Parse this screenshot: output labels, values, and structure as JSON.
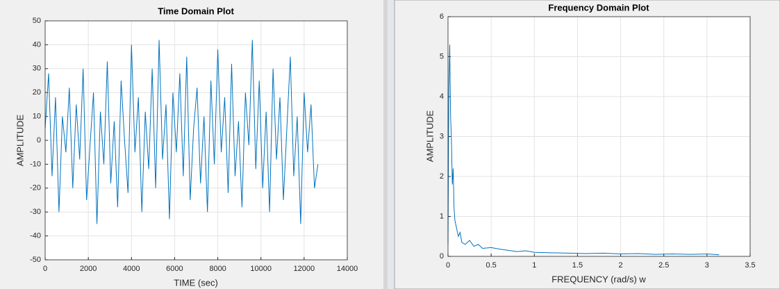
{
  "chart_data": [
    {
      "type": "line",
      "title": "Time Domain Plot",
      "xlabel": "TIME (sec)",
      "ylabel": "AMPLITUDE",
      "x": [
        0,
        160,
        320,
        480,
        640,
        800,
        960,
        1120,
        1280,
        1440,
        1600,
        1760,
        1920,
        2080,
        2240,
        2400,
        2560,
        2720,
        2880,
        3040,
        3200,
        3360,
        3520,
        3680,
        3840,
        4000,
        4160,
        4320,
        4480,
        4640,
        4800,
        4960,
        5120,
        5280,
        5440,
        5600,
        5760,
        5920,
        6080,
        6240,
        6400,
        6560,
        6720,
        6880,
        7040,
        7200,
        7360,
        7520,
        7680,
        7840,
        8000,
        8160,
        8320,
        8480,
        8640,
        8800,
        8960,
        9120,
        9280,
        9440,
        9600,
        9760,
        9920,
        10080,
        10240,
        10400,
        10560,
        10720,
        10880,
        11040,
        11200,
        11360,
        11520,
        11680,
        11840,
        12000,
        12160,
        12320,
        12480,
        12640
      ],
      "values": [
        5,
        28,
        -15,
        18,
        -30,
        10,
        -5,
        22,
        -20,
        15,
        -8,
        30,
        -25,
        -2,
        20,
        -35,
        12,
        -10,
        33,
        -18,
        8,
        -28,
        25,
        0,
        -22,
        40,
        -5,
        18,
        -30,
        12,
        -12,
        30,
        -20,
        42,
        -8,
        15,
        -33,
        20,
        -5,
        28,
        -15,
        35,
        -25,
        5,
        22,
        -18,
        10,
        -30,
        25,
        -10,
        38,
        -5,
        18,
        -22,
        32,
        -15,
        8,
        -28,
        20,
        -2,
        42,
        -12,
        25,
        -20,
        12,
        -30,
        30,
        -8,
        18,
        -25,
        5,
        35,
        -15,
        10,
        -35,
        20,
        -5,
        15,
        -20,
        -10
      ],
      "color": "#0072bd",
      "grid": true,
      "xlim": [
        0,
        14000
      ],
      "xticks": [
        0,
        2000,
        4000,
        6000,
        8000,
        10000,
        12000,
        14000
      ],
      "ylim": [
        -50,
        50
      ],
      "yticks": [
        -50,
        -40,
        -30,
        -20,
        -10,
        0,
        10,
        20,
        30,
        40,
        50
      ]
    },
    {
      "type": "line",
      "title": "Frequency Domain Plot",
      "xlabel": "FREQUENCY (rad/s) w",
      "ylabel": "AMPLITUDE",
      "x": [
        0,
        0.01,
        0.02,
        0.03,
        0.04,
        0.05,
        0.06,
        0.07,
        0.08,
        0.1,
        0.12,
        0.14,
        0.16,
        0.2,
        0.25,
        0.3,
        0.35,
        0.4,
        0.5,
        0.6,
        0.7,
        0.8,
        0.9,
        1,
        1.2,
        1.4,
        1.6,
        1.8,
        2,
        2.2,
        2.4,
        2.6,
        2.8,
        3,
        3.14
      ],
      "values": [
        0.3,
        4.2,
        5.3,
        3.5,
        2.9,
        1.8,
        2.2,
        1.2,
        0.9,
        0.7,
        0.5,
        0.6,
        0.35,
        0.3,
        0.4,
        0.25,
        0.3,
        0.2,
        0.22,
        0.18,
        0.15,
        0.12,
        0.14,
        0.1,
        0.09,
        0.08,
        0.07,
        0.08,
        0.06,
        0.07,
        0.05,
        0.06,
        0.05,
        0.06,
        0.04
      ],
      "color": "#0072bd",
      "grid": true,
      "xlim": [
        0,
        3.5
      ],
      "xticks": [
        0,
        0.5,
        1,
        1.5,
        2,
        2.5,
        3,
        3.5
      ],
      "ylim": [
        0,
        6
      ],
      "yticks": [
        0,
        1,
        2,
        3,
        4,
        5,
        6
      ]
    }
  ]
}
